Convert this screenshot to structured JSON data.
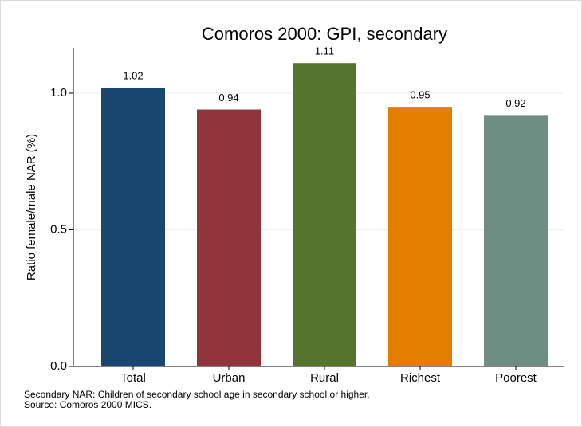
{
  "chart_data": {
    "type": "bar",
    "title": "Comoros 2000: GPI, secondary",
    "y_label": "Ratio female/male NAR (%)",
    "categories": [
      "Total",
      "Urban",
      "Rural",
      "Richest",
      "Poorest"
    ],
    "values": [
      1.02,
      0.94,
      1.11,
      0.95,
      0.92
    ],
    "colors": [
      "#1a476f",
      "#90353b",
      "#55752f",
      "#e37e00",
      "#6e8e84"
    ],
    "ylim": [
      0,
      1.166
    ],
    "yticks": [
      {
        "value": 0,
        "label": "0.0"
      },
      {
        "value": 0.5,
        "label": "0.5"
      },
      {
        "value": 1,
        "label": "1.0"
      }
    ],
    "grid": true,
    "notes": [
      "Secondary NAR: Children of secondary school age in secondary school or higher.",
      "Source: Comoros 2000 MICS."
    ]
  }
}
